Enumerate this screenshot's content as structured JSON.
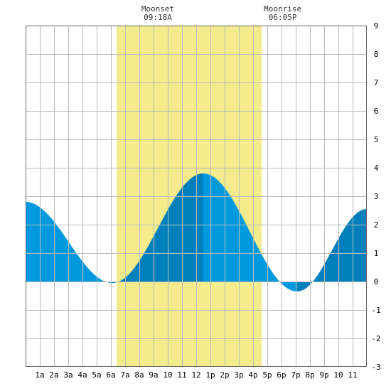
{
  "chart_data": {
    "type": "area",
    "title": "",
    "xlabel": "",
    "ylabel": "",
    "x_tick_labels": [
      "1a",
      "2a",
      "3a",
      "4a",
      "5a",
      "6a",
      "7a",
      "8a",
      "9a",
      "10",
      "11",
      "12",
      "1p",
      "2p",
      "3p",
      "4p",
      "5p",
      "6p",
      "7p",
      "8p",
      "9p",
      "10",
      "11"
    ],
    "y_ticks": [
      9,
      8,
      7,
      6,
      5,
      4,
      3,
      2,
      1,
      0,
      -1,
      -2,
      -3
    ],
    "ylim": [
      -3,
      9
    ],
    "xlim_hours": [
      0,
      24
    ],
    "daylight": {
      "start_hour": 6.4,
      "end_hour": 16.6
    },
    "moon_events": [
      {
        "label": "Moonset",
        "time": "09:18A",
        "hour": 9.3
      },
      {
        "label": "Moonrise",
        "time": "06:05P",
        "hour": 18.08
      }
    ],
    "tide_extremes": [
      {
        "hour": 0.0,
        "value": 2.8
      },
      {
        "hour": 6.1,
        "value": -0.05
      },
      {
        "hour": 12.5,
        "value": 3.8
      },
      {
        "hour": 19.1,
        "value": -0.35
      },
      {
        "hour": 24.0,
        "value": 2.55
      }
    ],
    "colors": {
      "daylight": "#f3eb8c",
      "tide_light": "#0099dd",
      "tide_dark": "#0080bb",
      "grid": "#bbbbbb",
      "axis": "#666666"
    }
  }
}
